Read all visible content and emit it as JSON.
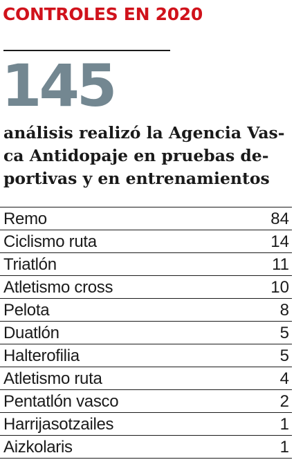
{
  "header": {
    "title": "CONTROLES EN 2020"
  },
  "highlight": {
    "value": "145",
    "caption": "análisis realizó la Agencia Vas-\nca Antidopaje en pruebas de-\nportivas y en entrenamientos"
  },
  "colors": {
    "title": "#d0121b",
    "highlight": "#738791",
    "text": "#1a1a1a",
    "rules": "#1a1a1a"
  },
  "chart_data": {
    "type": "table",
    "categories": [
      "Remo",
      "Ciclismo ruta",
      "Triatlón",
      "Atletismo cross",
      "Pelota",
      "Duatlón",
      "Halterofilia",
      "Atletismo ruta",
      "Pentatlón vasco",
      "Harrijasotzailes",
      "Aizkolaris"
    ],
    "values": [
      84,
      14,
      11,
      10,
      8,
      5,
      5,
      4,
      2,
      1,
      1
    ],
    "total": 145,
    "title": "CONTROLES EN 2020"
  }
}
